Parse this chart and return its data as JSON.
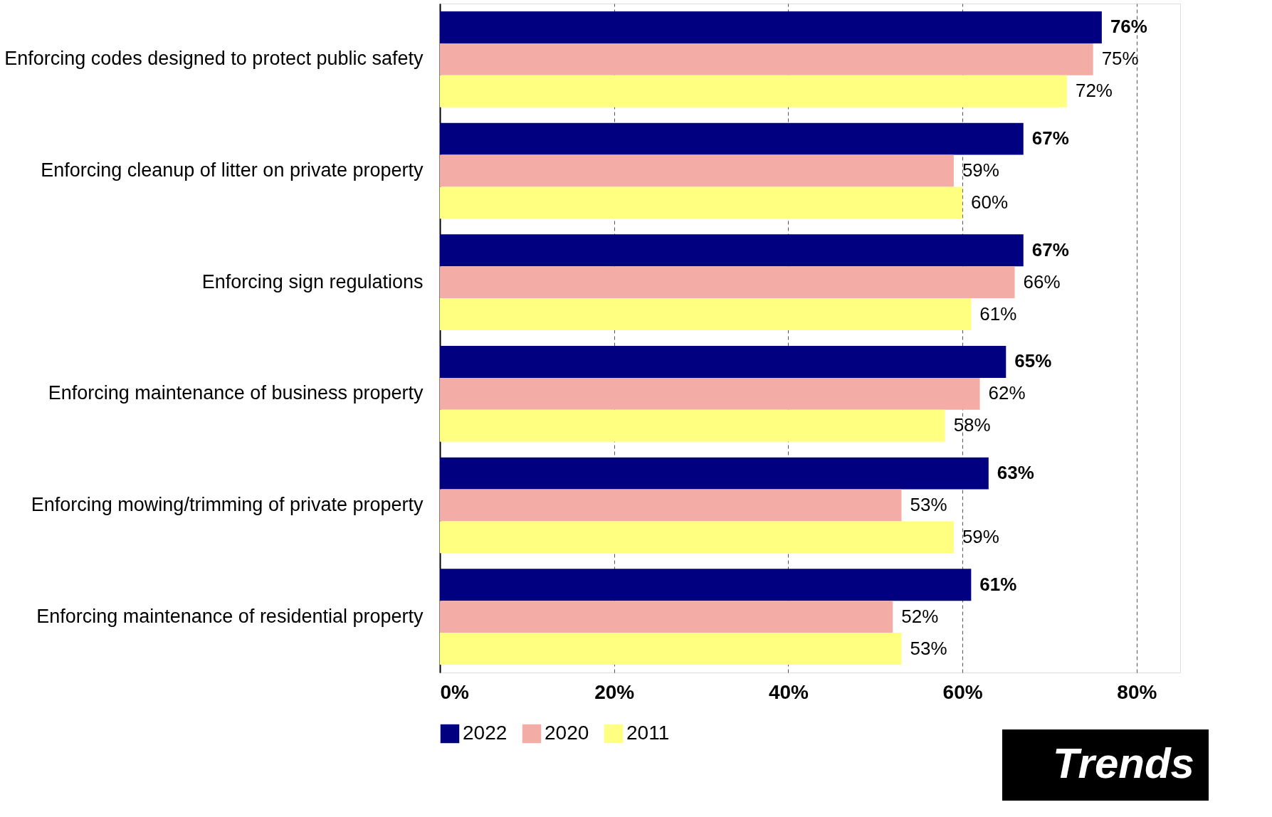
{
  "chart_data": {
    "type": "bar",
    "orientation": "horizontal",
    "categories": [
      "Enforcing codes designed to protect public safety",
      "Enforcing cleanup of litter on private property",
      "Enforcing sign regulations",
      "Enforcing maintenance of business property",
      "Enforcing mowing/trimming of private property",
      "Enforcing maintenance of residential property"
    ],
    "series": [
      {
        "name": "2022",
        "color": "#000080",
        "values": [
          76,
          67,
          67,
          65,
          63,
          61
        ],
        "value_labels": [
          "76%",
          "67%",
          "67%",
          "65%",
          "63%",
          "61%"
        ]
      },
      {
        "name": "2020",
        "color": "#f4aca6",
        "values": [
          75,
          59,
          66,
          62,
          53,
          52
        ],
        "value_labels": [
          "75%",
          "59%",
          "66%",
          "62%",
          "53%",
          "52%"
        ]
      },
      {
        "name": "2011",
        "color": "#ffff80",
        "values": [
          72,
          60,
          61,
          58,
          59,
          53
        ],
        "value_labels": [
          "72%",
          "60%",
          "61%",
          "58%",
          "59%",
          "53%"
        ]
      }
    ],
    "xlim": [
      0,
      85
    ],
    "xticks": [
      {
        "value": 0,
        "label": "0%"
      },
      {
        "value": 20,
        "label": "20%"
      },
      {
        "value": 40,
        "label": "40%"
      },
      {
        "value": 60,
        "label": "60%"
      },
      {
        "value": 80,
        "label": "80%"
      }
    ],
    "grid": "x",
    "legend": "bottom",
    "annotations": [
      "Trends"
    ]
  }
}
